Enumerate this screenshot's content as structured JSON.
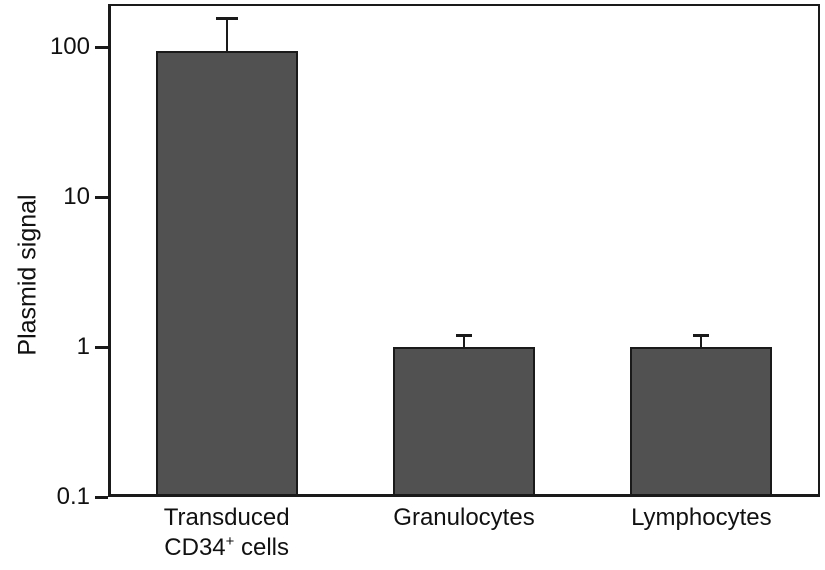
{
  "figure": {
    "background": "#ffffff",
    "axis_color": "#1a1a1a"
  },
  "chart_data": {
    "type": "bar",
    "title": "",
    "xlabel": "",
    "ylabel": "Plasmid signal",
    "y_scale": "log",
    "ylim": [
      0.1,
      195
    ],
    "yticks": [
      100,
      10,
      1,
      0.1
    ],
    "ytick_labels": [
      "100",
      "10",
      "1",
      "0.1"
    ],
    "categories": [
      "Transduced CD34+ cells",
      "Granulocytes",
      "Lymphocytes"
    ],
    "category_label_lines": [
      [
        "Transduced",
        "CD34^+^ cells"
      ],
      [
        "Granulocytes"
      ],
      [
        "Lymphocytes"
      ]
    ],
    "values": [
      95,
      1.0,
      1.0
    ],
    "error_upper": [
      155,
      1.2,
      1.2
    ],
    "bar_color": "#515151",
    "bar_edge_color": "#1a1a1a",
    "grid": false,
    "legend": null
  }
}
